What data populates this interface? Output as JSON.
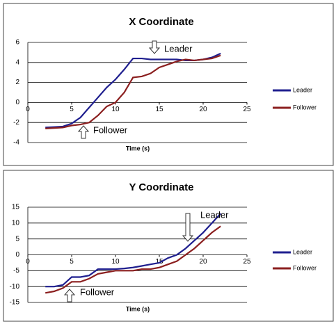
{
  "chart_data": [
    {
      "type": "line",
      "title": "X Coordinate",
      "xlabel": "Time (s)",
      "x": [
        2,
        3,
        4,
        5,
        6,
        7,
        8,
        9,
        10,
        11,
        12,
        13,
        14,
        15,
        16,
        17,
        18,
        19,
        20,
        21,
        22
      ],
      "xlim": [
        0,
        25
      ],
      "xticks": [
        0,
        5,
        10,
        15,
        20,
        25
      ],
      "ylim": [
        -4,
        6
      ],
      "yticks": [
        -4,
        -2,
        0,
        2,
        4,
        6
      ],
      "grid": true,
      "legend": "right",
      "series": [
        {
          "name": "Leader",
          "color": "#1f1f8f",
          "values": [
            -2.5,
            -2.45,
            -2.4,
            -2.1,
            -1.5,
            -0.5,
            0.5,
            1.5,
            2.3,
            3.3,
            4.4,
            4.4,
            4.3,
            4.3,
            4.3,
            4.3,
            4.2,
            4.2,
            4.3,
            4.5,
            4.9
          ]
        },
        {
          "name": "Follower",
          "color": "#8b1f1f",
          "values": [
            -2.6,
            -2.55,
            -2.5,
            -2.3,
            -2.2,
            -2.0,
            -1.3,
            -0.4,
            0.0,
            1.0,
            2.5,
            2.6,
            2.9,
            3.5,
            3.8,
            4.1,
            4.3,
            4.2,
            4.3,
            4.4,
            4.7
          ]
        }
      ],
      "annotations": [
        {
          "text": "Leader"
        },
        {
          "text": "Follower"
        }
      ]
    },
    {
      "type": "line",
      "title": "Y Coordinate",
      "xlabel": "Time (s)",
      "x": [
        2,
        3,
        4,
        5,
        6,
        7,
        8,
        9,
        10,
        11,
        12,
        13,
        14,
        15,
        16,
        17,
        18,
        19,
        20,
        21,
        22
      ],
      "xlim": [
        0,
        25
      ],
      "xticks": [
        0,
        5,
        10,
        15,
        20,
        25
      ],
      "ylim": [
        -15,
        15
      ],
      "yticks": [
        -15,
        -10,
        -5,
        0,
        5,
        10,
        15
      ],
      "grid": true,
      "legend": "right",
      "series": [
        {
          "name": "Leader",
          "color": "#1f1f8f",
          "values": [
            -10,
            -10,
            -9.5,
            -7,
            -7,
            -6.5,
            -4.5,
            -4.5,
            -4.5,
            -4.3,
            -4,
            -3.5,
            -3,
            -2.5,
            -1,
            0,
            2,
            4.5,
            7,
            10,
            13
          ]
        },
        {
          "name": "Follower",
          "color": "#8b1f1f",
          "values": [
            -12,
            -11.5,
            -10.5,
            -8.5,
            -8.5,
            -7.5,
            -6,
            -5.5,
            -5,
            -5,
            -5,
            -4.5,
            -4.5,
            -4,
            -3,
            -2,
            0,
            2,
            4.5,
            7,
            9
          ]
        }
      ],
      "annotations": [
        {
          "text": "Leader"
        },
        {
          "text": "Follower"
        }
      ]
    }
  ]
}
